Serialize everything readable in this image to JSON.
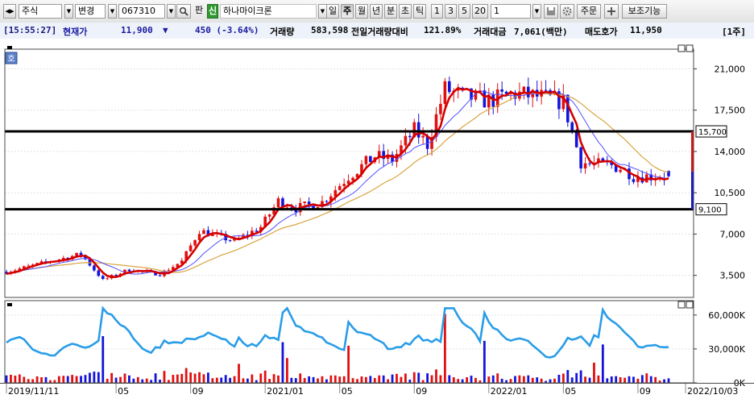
{
  "toolbar": {
    "market_select": "주식",
    "change_select": "변경",
    "code_input": "067310",
    "pan_label": "판",
    "new_badge": "신",
    "stock_name": "하나마이크론",
    "period_tabs": [
      "일",
      "주",
      "월",
      "년",
      "분",
      "초",
      "틱"
    ],
    "active_period": "주",
    "interval_buttons": [
      "1",
      "3",
      "5",
      "20"
    ],
    "count_input": "1",
    "order_button": "주문",
    "assist_button": "보조기능"
  },
  "status": {
    "time": "[15:55:27]",
    "price_label": "현재가",
    "price": "11,900",
    "direction_symbol": "▼",
    "change": "450 (-3.64%)",
    "volume_label": "거래량",
    "volume": "583,598",
    "prev_volume_ratio_label": "전일거래량대비",
    "prev_volume_ratio": "121.89%",
    "trade_value_label": "거래대금",
    "trade_value": "7,061(백만)",
    "ask_label": "매도호가",
    "ask": "11,950",
    "period_tag": "[1주]"
  },
  "colors": {
    "up": "#e01010",
    "down": "#1414d8",
    "ma_short": "#d40000",
    "ma_mid": "#5050ff",
    "ma_long": "#d9a441",
    "volume_ma": "#2a9de8"
  },
  "chart_data": {
    "type": "candlestick",
    "panel_badge": "호",
    "price_ticks": [
      "21,000",
      "17,500",
      "14,000",
      "10,500",
      "7,000",
      "3,500"
    ],
    "price_tick_values": [
      21000,
      17500,
      14000,
      10500,
      7000,
      3500
    ],
    "price_range": [
      1700,
      22600
    ],
    "horizontal_lines": [
      {
        "value": 15700,
        "label": "15,700"
      },
      {
        "value": 9100,
        "label": "9,100"
      }
    ],
    "volume_ticks": [
      "60,000K",
      "30,000K",
      "0K"
    ],
    "volume_tick_values": [
      60000,
      30000,
      0
    ],
    "volume_range": [
      0,
      72000
    ],
    "x_labels": [
      "2019/11/11",
      "05",
      "09",
      "2021/01",
      "05",
      "09",
      "2022/01",
      "05",
      "09",
      "2022/10/03"
    ],
    "x_label_weeks": [
      0,
      25,
      42,
      59,
      76,
      93,
      110,
      127,
      144,
      151
    ],
    "weeks": 152,
    "keyframes": [
      [
        0,
        3800
      ],
      [
        10,
        4700
      ],
      [
        17,
        5300
      ],
      [
        22,
        3100
      ],
      [
        28,
        4000
      ],
      [
        35,
        3600
      ],
      [
        40,
        4700
      ],
      [
        44,
        7300
      ],
      [
        52,
        6400
      ],
      [
        58,
        7600
      ],
      [
        62,
        9800
      ],
      [
        66,
        9200
      ],
      [
        72,
        9700
      ],
      [
        78,
        11900
      ],
      [
        84,
        13600
      ],
      [
        88,
        13300
      ],
      [
        93,
        15800
      ],
      [
        96,
        14600
      ],
      [
        100,
        19300
      ],
      [
        104,
        18700
      ],
      [
        110,
        18300
      ],
      [
        116,
        18900
      ],
      [
        122,
        18600
      ],
      [
        127,
        18200
      ],
      [
        131,
        13100
      ],
      [
        134,
        12900
      ],
      [
        138,
        12800
      ],
      [
        140,
        12600
      ],
      [
        142,
        12200
      ],
      [
        143,
        11900
      ]
    ],
    "last_candle": {
      "open": 12350,
      "high": 12400,
      "low": 11800,
      "close": 11900
    }
  }
}
